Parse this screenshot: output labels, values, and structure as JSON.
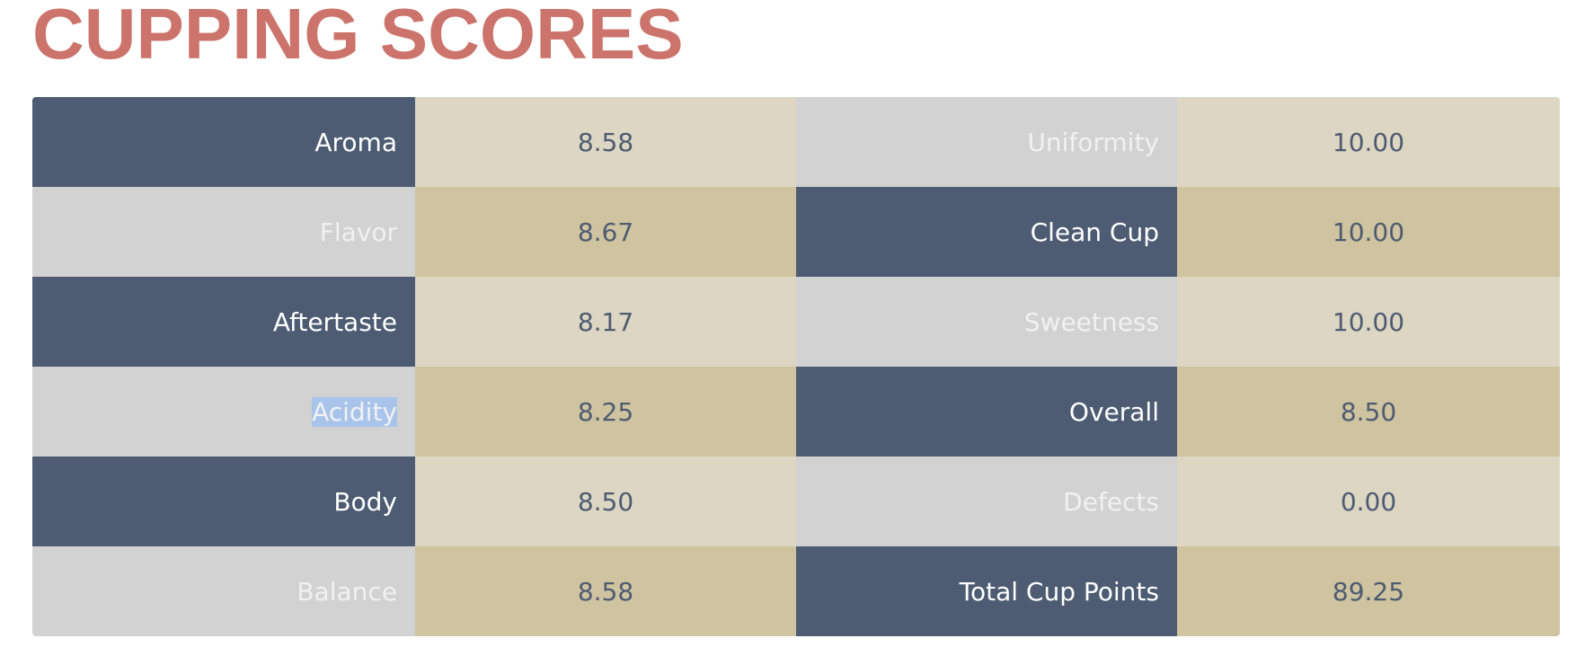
{
  "header": {
    "title": "CUPPING SCORES"
  },
  "scores": {
    "left": [
      {
        "label": "Aroma",
        "value": "8.58"
      },
      {
        "label": "Flavor",
        "value": "8.67"
      },
      {
        "label": "Aftertaste",
        "value": "8.17"
      },
      {
        "label": "Acidity",
        "value": "8.25"
      },
      {
        "label": "Body",
        "value": "8.50"
      },
      {
        "label": "Balance",
        "value": "8.58"
      }
    ],
    "right": [
      {
        "label": "Uniformity",
        "value": "10.00"
      },
      {
        "label": "Clean Cup",
        "value": "10.00"
      },
      {
        "label": "Sweetness",
        "value": "10.00"
      },
      {
        "label": "Overall",
        "value": "8.50"
      },
      {
        "label": "Defects",
        "value": "0.00"
      },
      {
        "label": "Total Cup Points",
        "value": "89.25"
      }
    ]
  },
  "selection": {
    "text": "Acidity",
    "highlight_color": "#a9c4eb"
  },
  "colors": {
    "title": "#cc736b",
    "label_dark": "#4d5c72",
    "label_light": "#d2d2d2",
    "value_light": "#ddd6c3",
    "value_dark": "#cfc3a0",
    "value_text": "#4d5c72"
  }
}
